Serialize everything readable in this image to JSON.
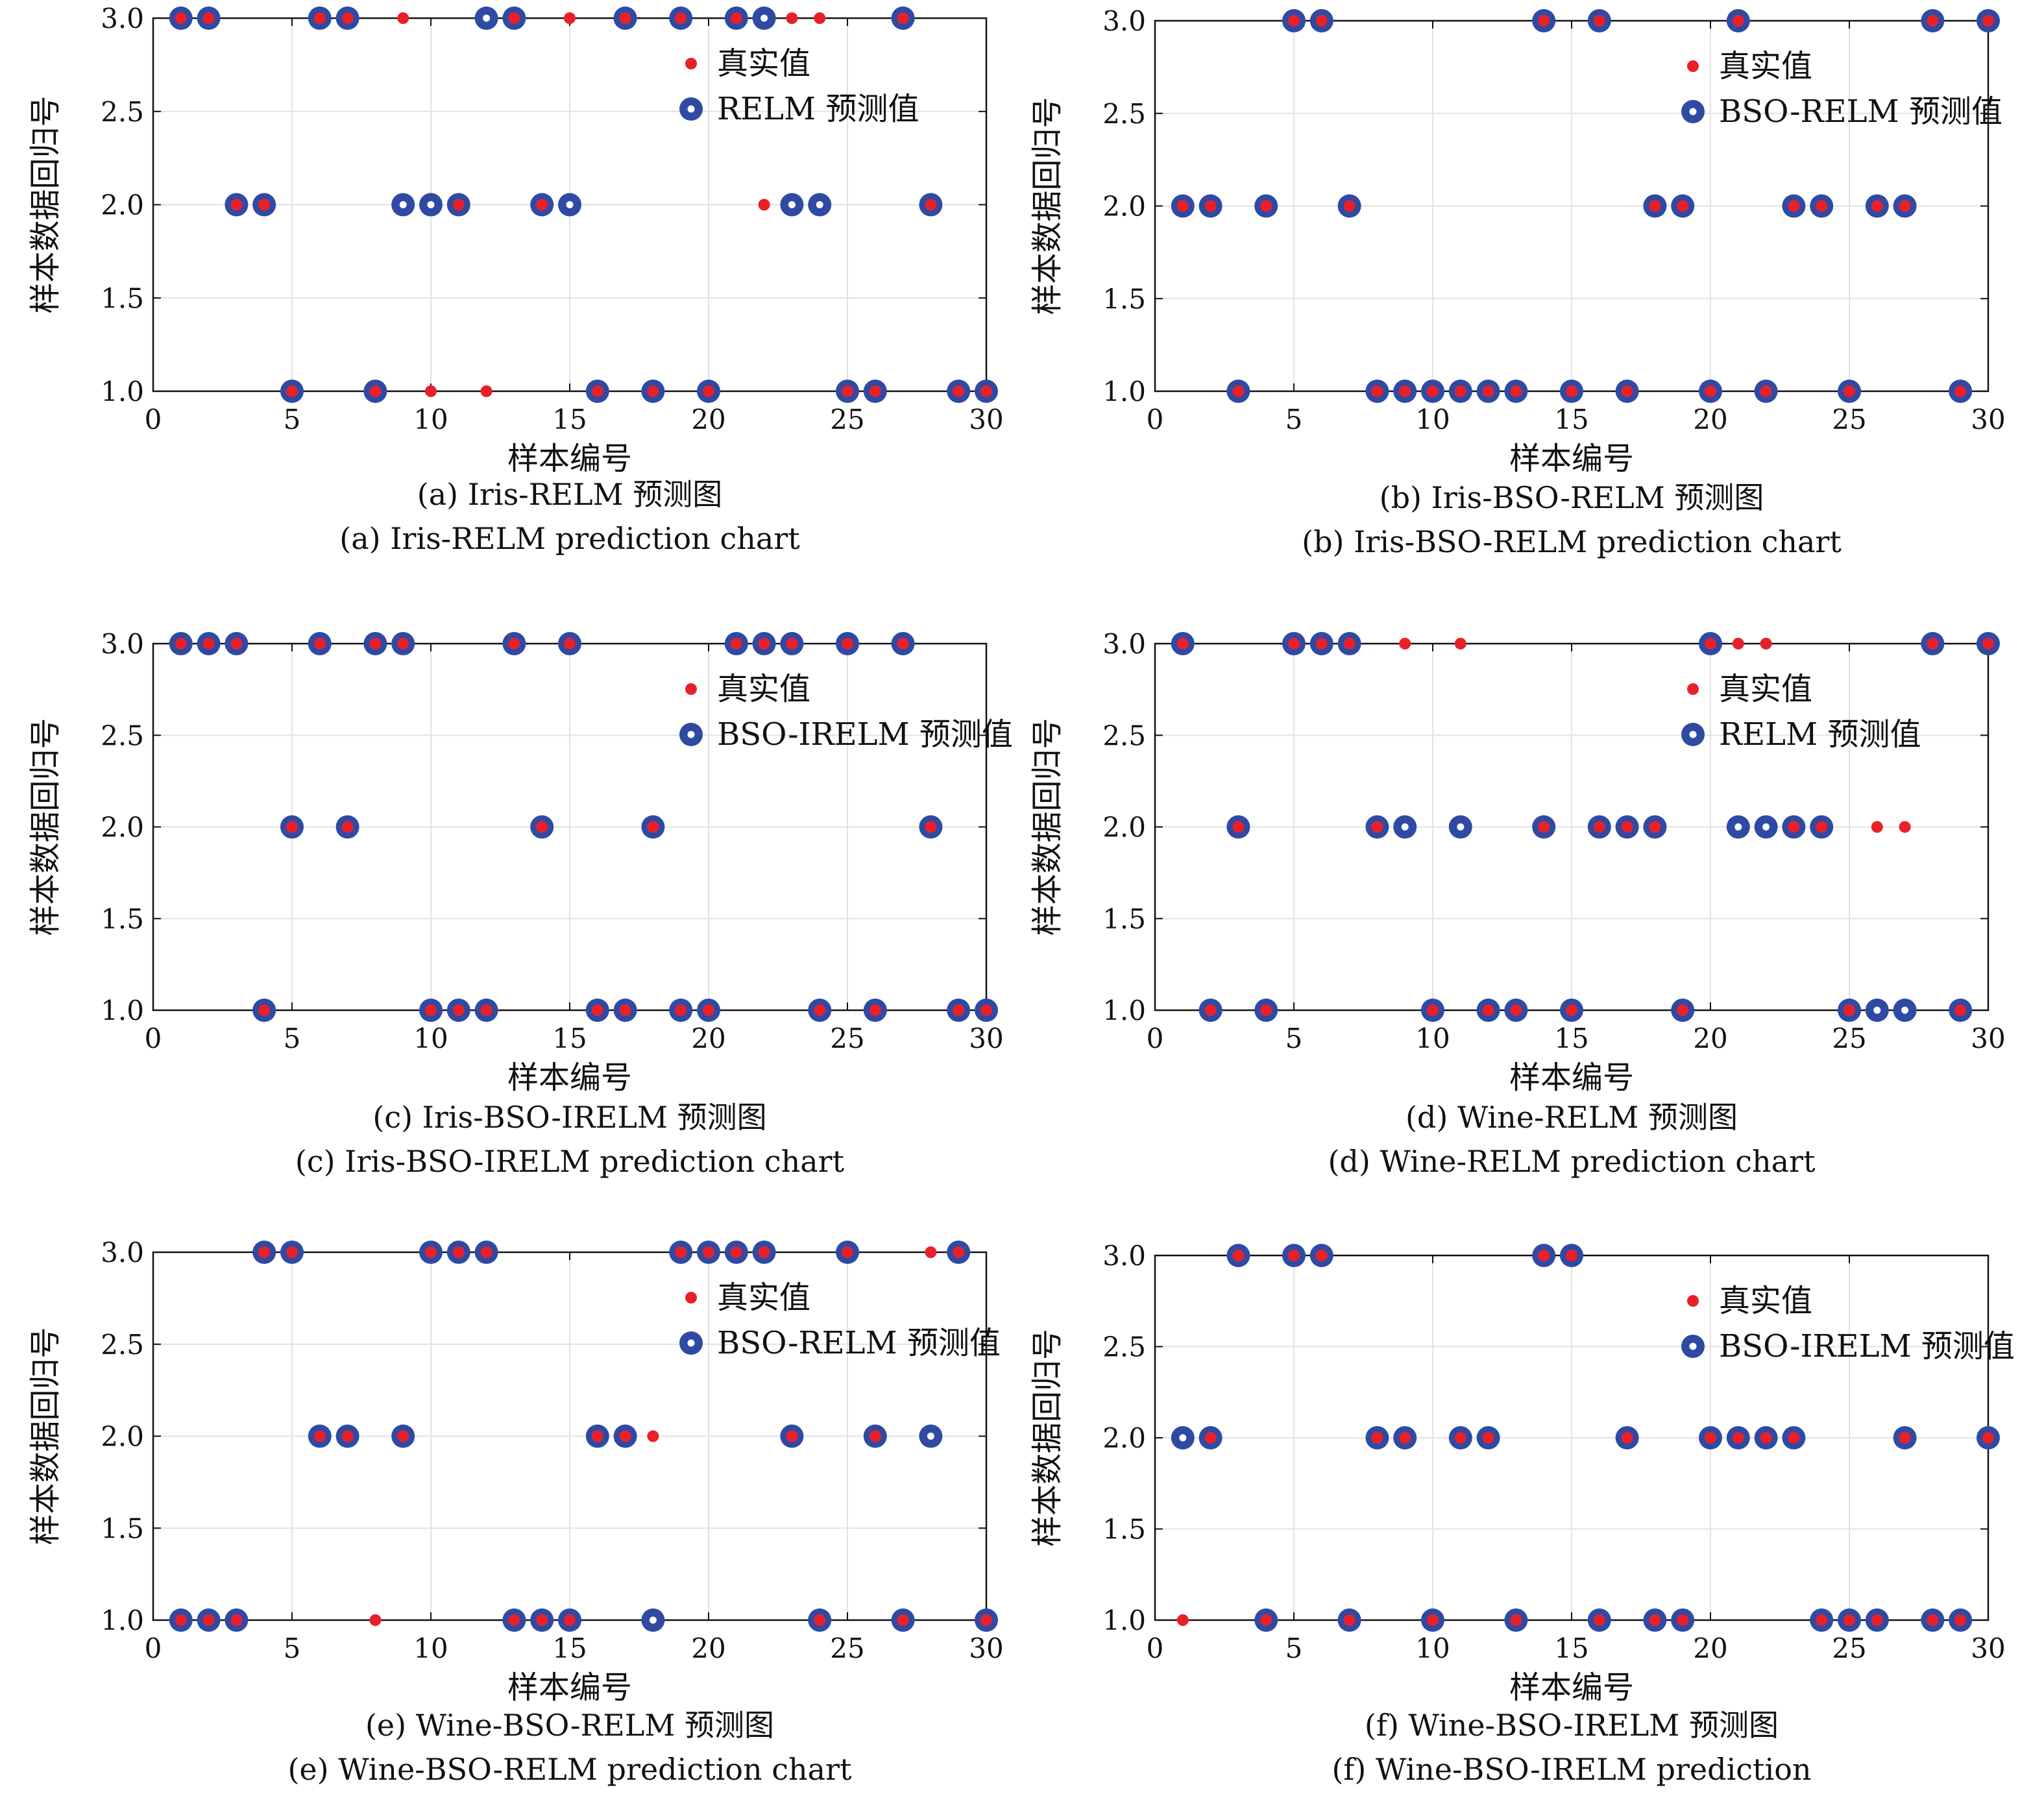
{
  "colors": {
    "true_marker": "#e8202a",
    "pred_marker": "#2f4aa3",
    "pred_inner": "#ffffff",
    "grid": "#e2e2e2",
    "axis": "#111111"
  },
  "chart_data": [
    {
      "type": "scatter",
      "xlabel": "样本编号",
      "ylabel": "样本数据回归号",
      "xlim": [
        0,
        30
      ],
      "ylim": [
        1,
        3
      ],
      "xticks": [
        "0",
        "5",
        "10",
        "15",
        "20",
        "25",
        "30"
      ],
      "yticks": [
        "1.0",
        "1.5",
        "2.0",
        "2.5",
        "3.0"
      ],
      "grid": true,
      "legend_position": "top-right",
      "legend": [
        "真实值",
        "RELM 预测值"
      ],
      "captions": [
        "(a) Iris-RELM 预测图",
        "(a) Iris-RELM prediction chart"
      ],
      "x": [
        1,
        2,
        3,
        4,
        5,
        6,
        7,
        8,
        9,
        10,
        11,
        12,
        13,
        14,
        15,
        16,
        17,
        18,
        19,
        20,
        21,
        22,
        23,
        24,
        25,
        26,
        27,
        28,
        29,
        30
      ],
      "series": [
        {
          "name": "真实值",
          "values": [
            3,
            3,
            2,
            2,
            1,
            3,
            3,
            1,
            3,
            1,
            2,
            1,
            3,
            2,
            3,
            1,
            3,
            1,
            3,
            1,
            3,
            2,
            3,
            3,
            1,
            1,
            3,
            2,
            1,
            1
          ]
        },
        {
          "name": "RELM 预测值",
          "values": [
            3,
            3,
            2,
            2,
            1,
            3,
            3,
            1,
            2,
            2,
            2,
            3,
            3,
            2,
            2,
            1,
            3,
            1,
            3,
            1,
            3,
            3,
            2,
            2,
            1,
            1,
            3,
            2,
            1,
            1
          ]
        }
      ]
    },
    {
      "type": "scatter",
      "xlabel": "样本编号",
      "ylabel": "样本数据回归号",
      "xlim": [
        0,
        30
      ],
      "ylim": [
        1,
        3
      ],
      "xticks": [
        "0",
        "5",
        "10",
        "15",
        "20",
        "25",
        "30"
      ],
      "yticks": [
        "1.0",
        "1.5",
        "2.0",
        "2.5",
        "3.0"
      ],
      "grid": true,
      "legend_position": "top-right",
      "legend": [
        "真实值",
        "BSO-RELM 预测值"
      ],
      "captions": [
        "(b) Iris-BSO-RELM 预测图",
        "(b) Iris-BSO-RELM prediction chart"
      ],
      "x": [
        1,
        2,
        3,
        4,
        5,
        6,
        7,
        8,
        9,
        10,
        11,
        12,
        13,
        14,
        15,
        16,
        17,
        18,
        19,
        20,
        21,
        22,
        23,
        24,
        25,
        26,
        27,
        28,
        29,
        30
      ],
      "series": [
        {
          "name": "真实值",
          "values": [
            2,
            2,
            1,
            2,
            3,
            3,
            2,
            1,
            1,
            1,
            1,
            1,
            1,
            3,
            1,
            3,
            1,
            2,
            2,
            1,
            3,
            1,
            2,
            2,
            1,
            2,
            2,
            3,
            1,
            3
          ]
        },
        {
          "name": "BSO-RELM 预测值",
          "values": [
            2,
            2,
            1,
            2,
            3,
            3,
            2,
            1,
            1,
            1,
            1,
            1,
            1,
            3,
            1,
            3,
            1,
            2,
            2,
            1,
            3,
            1,
            2,
            2,
            1,
            2,
            2,
            3,
            1,
            3
          ]
        }
      ]
    },
    {
      "type": "scatter",
      "xlabel": "样本编号",
      "ylabel": "样本数据回归号",
      "xlim": [
        0,
        30
      ],
      "ylim": [
        1,
        3
      ],
      "xticks": [
        "0",
        "5",
        "10",
        "15",
        "20",
        "25",
        "30"
      ],
      "yticks": [
        "1.0",
        "1.5",
        "2.0",
        "2.5",
        "3.0"
      ],
      "grid": true,
      "legend_position": "top-right",
      "legend": [
        "真实值",
        "BSO-IRELM 预测值"
      ],
      "captions": [
        "(c) Iris-BSO-IRELM 预测图",
        "(c) Iris-BSO-IRELM prediction chart"
      ],
      "x": [
        1,
        2,
        3,
        4,
        5,
        6,
        7,
        8,
        9,
        10,
        11,
        12,
        13,
        14,
        15,
        16,
        17,
        18,
        19,
        20,
        21,
        22,
        23,
        24,
        25,
        26,
        27,
        28,
        29,
        30
      ],
      "series": [
        {
          "name": "真实值",
          "values": [
            3,
            3,
            3,
            1,
            2,
            3,
            2,
            3,
            3,
            1,
            1,
            1,
            3,
            2,
            3,
            1,
            1,
            2,
            1,
            1,
            3,
            3,
            3,
            1,
            3,
            1,
            3,
            2,
            1,
            1
          ]
        },
        {
          "name": "BSO-IRELM 预测值",
          "values": [
            3,
            3,
            3,
            1,
            2,
            3,
            2,
            3,
            3,
            1,
            1,
            1,
            3,
            2,
            3,
            1,
            1,
            2,
            1,
            1,
            3,
            3,
            3,
            1,
            3,
            1,
            3,
            2,
            1,
            1
          ]
        }
      ]
    },
    {
      "type": "scatter",
      "xlabel": "样本编号",
      "ylabel": "样本数据回归号",
      "xlim": [
        0,
        30
      ],
      "ylim": [
        1,
        3
      ],
      "xticks": [
        "0",
        "5",
        "10",
        "15",
        "20",
        "25",
        "30"
      ],
      "yticks": [
        "1.0",
        "1.5",
        "2.0",
        "2.5",
        "3.0"
      ],
      "grid": true,
      "legend_position": "top-right",
      "legend": [
        "真实值",
        "RELM 预测值"
      ],
      "captions": [
        "(d) Wine-RELM 预测图",
        "(d) Wine-RELM prediction chart"
      ],
      "x": [
        1,
        2,
        3,
        4,
        5,
        6,
        7,
        8,
        9,
        10,
        11,
        12,
        13,
        14,
        15,
        16,
        17,
        18,
        19,
        20,
        21,
        22,
        23,
        24,
        25,
        26,
        27,
        28,
        29,
        30
      ],
      "series": [
        {
          "name": "真实值",
          "values": [
            3,
            1,
            2,
            1,
            3,
            3,
            3,
            2,
            3,
            1,
            3,
            1,
            1,
            2,
            1,
            2,
            2,
            2,
            1,
            3,
            3,
            3,
            2,
            2,
            1,
            2,
            2,
            3,
            1,
            3
          ]
        },
        {
          "name": "RELM 预测值",
          "values": [
            3,
            1,
            2,
            1,
            3,
            3,
            3,
            2,
            2,
            1,
            2,
            1,
            1,
            2,
            1,
            2,
            2,
            2,
            1,
            3,
            2,
            2,
            2,
            2,
            1,
            1,
            1,
            3,
            1,
            3
          ]
        }
      ]
    },
    {
      "type": "scatter",
      "xlabel": "样本编号",
      "ylabel": "样本数据回归号",
      "xlim": [
        0,
        30
      ],
      "ylim": [
        1,
        3
      ],
      "xticks": [
        "0",
        "5",
        "10",
        "15",
        "20",
        "25",
        "30"
      ],
      "yticks": [
        "1.0",
        "1.5",
        "2.0",
        "2.5",
        "3.0"
      ],
      "grid": true,
      "legend_position": "top-right",
      "legend": [
        "真实值",
        "BSO-RELM 预测值"
      ],
      "captions": [
        "(e) Wine-BSO-RELM 预测图",
        "(e) Wine-BSO-RELM prediction chart"
      ],
      "x": [
        1,
        2,
        3,
        4,
        5,
        6,
        7,
        8,
        9,
        10,
        11,
        12,
        13,
        14,
        15,
        16,
        17,
        18,
        19,
        20,
        21,
        22,
        23,
        24,
        25,
        26,
        27,
        28,
        29,
        30
      ],
      "series": [
        {
          "name": "真实值",
          "values": [
            1,
            1,
            1,
            3,
            3,
            2,
            2,
            1,
            2,
            3,
            3,
            3,
            1,
            1,
            1,
            2,
            2,
            2,
            3,
            3,
            3,
            3,
            2,
            1,
            3,
            2,
            1,
            3,
            3,
            1
          ]
        },
        {
          "name": "BSO-RELM 预测值",
          "values": [
            1,
            1,
            1,
            3,
            3,
            2,
            2,
            null,
            2,
            3,
            3,
            3,
            1,
            1,
            1,
            2,
            2,
            1,
            3,
            3,
            3,
            3,
            2,
            1,
            3,
            2,
            1,
            2,
            3,
            1
          ]
        }
      ]
    },
    {
      "type": "scatter",
      "xlabel": "样本编号",
      "ylabel": "样本数据回归号",
      "xlim": [
        0,
        30
      ],
      "ylim": [
        1,
        3
      ],
      "xticks": [
        "0",
        "5",
        "10",
        "15",
        "20",
        "25",
        "30"
      ],
      "yticks": [
        "1.0",
        "1.5",
        "2.0",
        "2.5",
        "3.0"
      ],
      "grid": true,
      "legend_position": "top-right",
      "legend": [
        "真实值",
        "BSO-IRELM 预测值"
      ],
      "captions": [
        "(f) Wine-BSO-IRELM 预测图",
        "(f) Wine-BSO-IRELM prediction"
      ],
      "x": [
        1,
        2,
        3,
        4,
        5,
        6,
        7,
        8,
        9,
        10,
        11,
        12,
        13,
        14,
        15,
        16,
        17,
        18,
        19,
        20,
        21,
        22,
        23,
        24,
        25,
        26,
        27,
        28,
        29,
        30
      ],
      "series": [
        {
          "name": "真实值",
          "values": [
            1,
            2,
            3,
            1,
            3,
            3,
            1,
            2,
            2,
            1,
            2,
            2,
            1,
            3,
            3,
            1,
            2,
            1,
            1,
            2,
            2,
            2,
            2,
            1,
            1,
            1,
            2,
            1,
            1,
            2
          ]
        },
        {
          "name": "BSO-IRELM 预测值",
          "values": [
            2,
            2,
            3,
            1,
            3,
            3,
            1,
            2,
            2,
            1,
            2,
            2,
            1,
            3,
            3,
            1,
            2,
            1,
            1,
            2,
            2,
            2,
            2,
            1,
            1,
            1,
            2,
            1,
            1,
            2
          ]
        }
      ]
    }
  ]
}
